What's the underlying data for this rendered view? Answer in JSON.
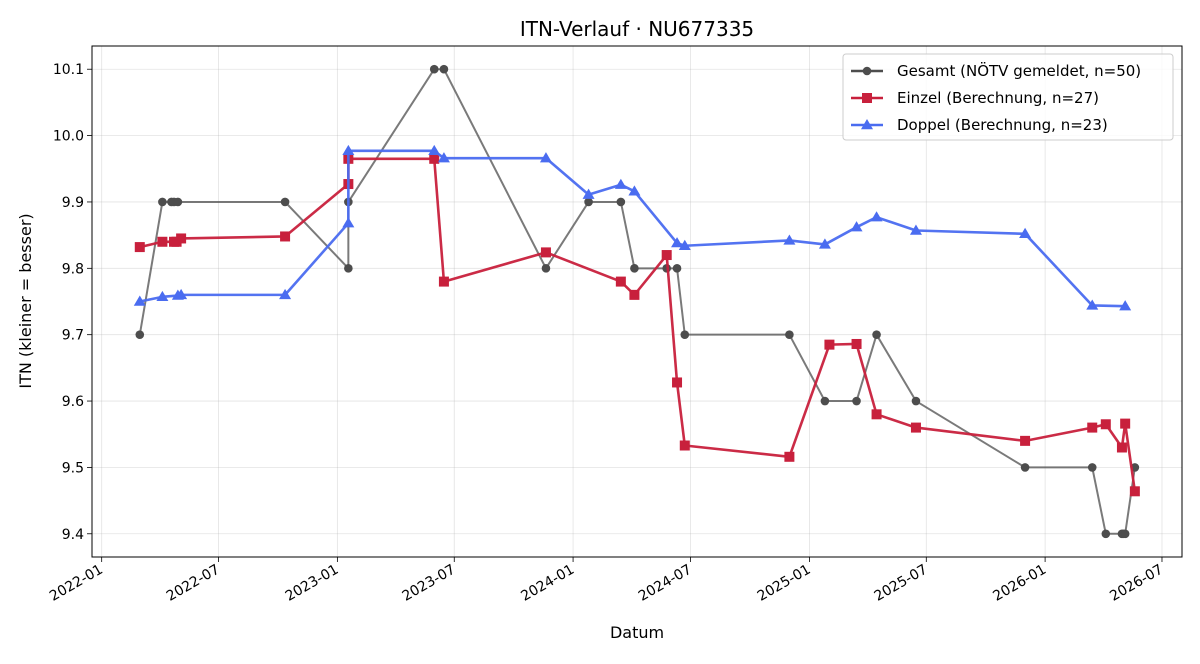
{
  "chart_data": {
    "type": "line",
    "title": "ITN-Verlauf · NU677335",
    "xlabel": "Datum",
    "ylabel": "ITN  (kleiner = besser)",
    "xlim": [
      "2021-12-17",
      "2026-08-01"
    ],
    "ylim": [
      9.365,
      10.135
    ],
    "x_ticks": [
      "2022-01-01",
      "2022-07-01",
      "2023-01-01",
      "2023-07-01",
      "2024-01-01",
      "2024-07-01",
      "2025-01-01",
      "2025-07-01",
      "2026-01-01",
      "2026-07-01"
    ],
    "x_tick_labels": [
      "2022-01",
      "2022-07",
      "2023-01",
      "2023-07",
      "2024-01",
      "2024-07",
      "2025-01",
      "2025-07",
      "2026-01",
      "2026-07"
    ],
    "y_ticks": [
      9.4,
      9.5,
      9.6,
      9.7,
      9.8,
      9.9,
      10.0,
      10.1
    ],
    "y_tick_labels": [
      "9.4",
      "9.5",
      "9.6",
      "9.7",
      "9.8",
      "9.9",
      "10.0",
      "10.1"
    ],
    "grid": true,
    "legend_position": "top-right",
    "series": [
      {
        "name": "Gesamt (NÖTV gemeldet, n=50)",
        "color": "#4d4d4d",
        "marker": "circle",
        "points": [
          [
            "2022-03-01",
            9.7
          ],
          [
            "2022-04-05",
            9.9
          ],
          [
            "2022-04-19",
            9.9
          ],
          [
            "2022-04-23",
            9.9
          ],
          [
            "2022-04-29",
            9.9
          ],
          [
            "2022-10-12",
            9.9
          ],
          [
            "2023-01-18",
            9.8
          ],
          [
            "2023-01-18",
            9.9
          ],
          [
            "2023-05-31",
            10.1
          ],
          [
            "2023-06-15",
            10.1
          ],
          [
            "2023-11-20",
            9.8
          ],
          [
            "2024-01-25",
            9.9
          ],
          [
            "2024-03-15",
            9.9
          ],
          [
            "2024-04-05",
            9.8
          ],
          [
            "2024-05-25",
            9.8
          ],
          [
            "2024-06-10",
            9.8
          ],
          [
            "2024-06-22",
            9.7
          ],
          [
            "2024-12-01",
            9.7
          ],
          [
            "2025-01-25",
            9.6
          ],
          [
            "2025-03-15",
            9.6
          ],
          [
            "2025-04-15",
            9.7
          ],
          [
            "2025-06-15",
            9.6
          ],
          [
            "2025-12-01",
            9.5
          ],
          [
            "2026-03-15",
            9.5
          ],
          [
            "2026-04-05",
            9.4
          ],
          [
            "2026-04-30",
            9.4
          ],
          [
            "2026-05-02",
            9.4
          ],
          [
            "2026-05-05",
            9.4
          ],
          [
            "2026-05-20",
            9.5
          ]
        ]
      },
      {
        "name": "Einzel (Berechnung, n=27)",
        "color": "#c8203c",
        "marker": "square",
        "points": [
          [
            "2022-03-01",
            9.832
          ],
          [
            "2022-04-05",
            9.84
          ],
          [
            "2022-04-23",
            9.84
          ],
          [
            "2022-04-27",
            9.84
          ],
          [
            "2022-05-04",
            9.845
          ],
          [
            "2022-10-12",
            9.848
          ],
          [
            "2023-01-18",
            9.927
          ],
          [
            "2023-01-18",
            9.965
          ],
          [
            "2023-05-31",
            9.965
          ],
          [
            "2023-06-15",
            9.78
          ],
          [
            "2023-11-20",
            9.824
          ],
          [
            "2024-03-15",
            9.78
          ],
          [
            "2024-04-05",
            9.76
          ],
          [
            "2024-05-25",
            9.82
          ],
          [
            "2024-06-10",
            9.628
          ],
          [
            "2024-06-22",
            9.533
          ],
          [
            "2024-12-01",
            9.516
          ],
          [
            "2025-02-01",
            9.685
          ],
          [
            "2025-03-15",
            9.686
          ],
          [
            "2025-04-15",
            9.58
          ],
          [
            "2025-06-15",
            9.56
          ],
          [
            "2025-12-01",
            9.54
          ],
          [
            "2026-03-15",
            9.56
          ],
          [
            "2026-04-05",
            9.565
          ],
          [
            "2026-04-30",
            9.53
          ],
          [
            "2026-05-05",
            9.566
          ],
          [
            "2026-05-20",
            9.464
          ]
        ]
      },
      {
        "name": "Doppel (Berechnung, n=23)",
        "color": "#4a6cf0",
        "marker": "triangle",
        "points": [
          [
            "2022-03-01",
            9.75
          ],
          [
            "2022-04-05",
            9.757
          ],
          [
            "2022-04-29",
            9.759
          ],
          [
            "2022-05-04",
            9.76
          ],
          [
            "2022-10-12",
            9.76
          ],
          [
            "2023-01-18",
            9.868
          ],
          [
            "2023-01-18",
            9.977
          ],
          [
            "2023-05-31",
            9.977
          ],
          [
            "2023-06-15",
            9.966
          ],
          [
            "2023-11-20",
            9.966
          ],
          [
            "2024-01-25",
            9.911
          ],
          [
            "2024-03-15",
            9.926
          ],
          [
            "2024-04-05",
            9.916
          ],
          [
            "2024-06-10",
            9.838
          ],
          [
            "2024-06-22",
            9.834
          ],
          [
            "2024-12-01",
            9.842
          ],
          [
            "2025-01-25",
            9.836
          ],
          [
            "2025-03-15",
            9.862
          ],
          [
            "2025-04-15",
            9.877
          ],
          [
            "2025-06-15",
            9.857
          ],
          [
            "2025-12-01",
            9.852
          ],
          [
            "2026-03-15",
            9.744
          ],
          [
            "2026-05-05",
            9.743
          ]
        ]
      }
    ]
  }
}
